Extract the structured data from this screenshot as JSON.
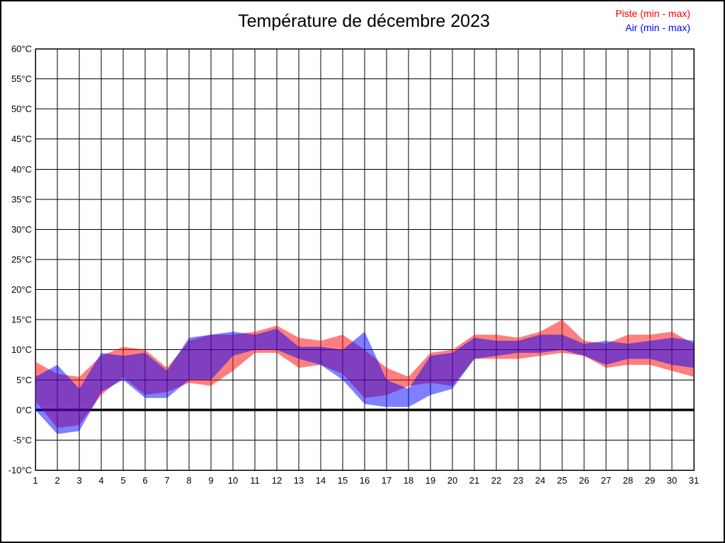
{
  "title": "Température de décembre 2023",
  "legend": {
    "piste": {
      "label": "Piste (min - max)",
      "color": "#ff0000"
    },
    "air": {
      "label": "Air (min - max)",
      "color": "#0000ff"
    }
  },
  "chart_data": {
    "type": "area",
    "title": "Température de décembre 2023",
    "categories": [
      1,
      2,
      3,
      4,
      5,
      6,
      7,
      8,
      9,
      10,
      11,
      12,
      13,
      14,
      15,
      16,
      17,
      18,
      19,
      20,
      21,
      22,
      23,
      24,
      25,
      26,
      27,
      28,
      29,
      30,
      31
    ],
    "y_ticks": [
      60,
      55,
      50,
      45,
      40,
      35,
      30,
      25,
      20,
      15,
      10,
      5,
      0,
      -5,
      -10
    ],
    "y_tick_suffix": "°C",
    "ylim": [
      -10,
      60
    ],
    "grid": true,
    "zero_line_at": 0,
    "legend_position": "top-right",
    "series": [
      {
        "name": "Piste (min - max)",
        "fill": "rgba(255,0,0,0.5)",
        "min": [
          1.5,
          -3,
          -2.5,
          2.5,
          5.5,
          2.5,
          3,
          4.5,
          4,
          6.5,
          9.5,
          9.5,
          7,
          7.5,
          6,
          2,
          2.5,
          4,
          4.5,
          4,
          8.5,
          8.5,
          8.5,
          9,
          9.5,
          9,
          7,
          7.5,
          7.5,
          6.5,
          5.5
        ],
        "max": [
          8,
          6,
          5.5,
          9,
          10.5,
          10,
          7,
          11.5,
          12.5,
          12.5,
          13,
          14,
          12,
          11.5,
          12.5,
          10,
          7,
          5.5,
          9.5,
          10,
          12.5,
          12.5,
          12,
          13,
          15,
          11.5,
          11,
          12.5,
          12.5,
          13,
          11
        ]
      },
      {
        "name": "Air (min - max)",
        "fill": "rgba(0,0,255,0.5)",
        "min": [
          0,
          -4,
          -3.5,
          3,
          5,
          2,
          2,
          5,
          5,
          9,
          10,
          10,
          8.5,
          7.5,
          5,
          1,
          0.5,
          0.5,
          2.5,
          3.5,
          8.5,
          9,
          9.5,
          9.5,
          10,
          9,
          7.5,
          8.5,
          8.5,
          7.5,
          7
        ],
        "max": [
          5.5,
          7.5,
          3.5,
          9.5,
          9,
          9.5,
          6.5,
          12,
          12.5,
          13,
          12.5,
          13.5,
          10.5,
          10.5,
          10,
          13,
          5,
          3.5,
          9,
          9.5,
          12,
          11.5,
          11.5,
          12.5,
          12.5,
          11,
          11.5,
          11,
          11.5,
          12,
          11.5
        ]
      }
    ]
  }
}
